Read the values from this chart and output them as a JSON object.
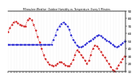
{
  "title": "Milwaukee Weather  Outdoor Humidity vs. Temperature  Every 5 Minutes",
  "bg_color": "#ffffff",
  "grid_color": "#c8c8c8",
  "humidity_color": "#0000cc",
  "temp_color": "#cc0000",
  "y_min": 10,
  "y_max": 90,
  "right_y_ticks": [
    90,
    80,
    70,
    60,
    50,
    40,
    30,
    20,
    10
  ],
  "temp_data": [
    62,
    65,
    67,
    70,
    72,
    74,
    75,
    76,
    76,
    75,
    74,
    73,
    72,
    72,
    71,
    71,
    70,
    70,
    70,
    75,
    78,
    80,
    80,
    79,
    78,
    75,
    72,
    68,
    64,
    60,
    56,
    52,
    48,
    44,
    40,
    36,
    32,
    28,
    26,
    24,
    22,
    20,
    19,
    18,
    18,
    17,
    17,
    18,
    18,
    19,
    20,
    21,
    22,
    22,
    22,
    21,
    20,
    19,
    18,
    18,
    17,
    17,
    17,
    18,
    20,
    22,
    25,
    28,
    32,
    36,
    38,
    38,
    36,
    34,
    32,
    30,
    28,
    26,
    24,
    22,
    20,
    22,
    24,
    28,
    32,
    36,
    40,
    42,
    44,
    44,
    43,
    42,
    40,
    38,
    36,
    34,
    32,
    30,
    28,
    26,
    24,
    22,
    20,
    18,
    16,
    14,
    12,
    11,
    10,
    12,
    14,
    16,
    18,
    20,
    22,
    24,
    26,
    28,
    30,
    32
  ],
  "humidity_data": [
    45,
    45,
    45,
    45,
    45,
    45,
    45,
    45,
    45,
    45,
    45,
    45,
    45,
    45,
    45,
    45,
    45,
    45,
    45,
    45,
    45,
    45,
    45,
    45,
    45,
    45,
    45,
    45,
    45,
    45,
    45,
    45,
    45,
    45,
    45,
    45,
    45,
    45,
    45,
    45,
    45,
    45,
    45,
    45,
    45,
    50,
    52,
    55,
    58,
    62,
    65,
    68,
    70,
    72,
    73,
    74,
    75,
    74,
    73,
    72,
    70,
    68,
    65,
    62,
    58,
    55,
    52,
    50,
    48,
    46,
    44,
    43,
    42,
    42,
    42,
    42,
    43,
    44,
    45,
    46,
    47,
    48,
    49,
    50,
    51,
    52,
    53,
    54,
    55,
    56,
    57,
    58,
    58,
    58,
    57,
    56,
    55,
    54,
    53,
    52,
    51,
    50,
    49,
    48,
    47,
    46,
    45,
    44,
    43,
    42,
    42,
    42,
    43,
    44,
    45,
    46,
    47,
    48,
    50,
    52
  ],
  "n_xticks": 40
}
